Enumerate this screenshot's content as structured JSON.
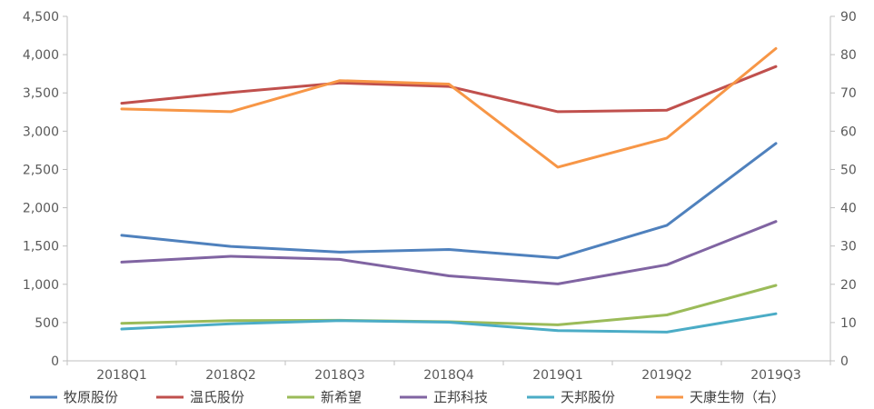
{
  "chart_data": {
    "type": "line",
    "categories": [
      "2018Q1",
      "2018Q2",
      "2018Q3",
      "2018Q4",
      "2019Q1",
      "2019Q2",
      "2019Q3"
    ],
    "yaxis_left": {
      "range": [
        0,
        4500
      ],
      "ticks": [
        0,
        500,
        1000,
        1500,
        2000,
        2500,
        3000,
        3500,
        4000,
        4500
      ],
      "tick_labels": [
        "0",
        "500",
        "1,000",
        "1,500",
        "2,000",
        "2,500",
        "3,000",
        "3,500",
        "4,000",
        "4,500"
      ]
    },
    "yaxis_right": {
      "range": [
        0,
        90
      ],
      "ticks": [
        0,
        10,
        20,
        30,
        40,
        50,
        60,
        70,
        80,
        90
      ],
      "tick_labels": [
        "0",
        "10",
        "20",
        "30",
        "40",
        "50",
        "60",
        "70",
        "80",
        "90"
      ]
    },
    "grid": false,
    "legend_position": "bottom",
    "series": [
      {
        "name": "牧原股份",
        "axis": "left",
        "color": "#4f81bd",
        "values": [
          1640,
          1495,
          1420,
          1455,
          1345,
          1770,
          2840
        ]
      },
      {
        "name": "温氏股份",
        "axis": "left",
        "color": "#c0504d",
        "values": [
          3365,
          3505,
          3630,
          3585,
          3255,
          3275,
          3845
        ]
      },
      {
        "name": "新希望",
        "axis": "left",
        "color": "#9bbb59",
        "values": [
          490,
          525,
          530,
          510,
          470,
          600,
          985
        ]
      },
      {
        "name": "正邦科技",
        "axis": "left",
        "color": "#8064a2",
        "values": [
          1290,
          1365,
          1325,
          1110,
          1005,
          1255,
          1820
        ]
      },
      {
        "name": "天邦股份",
        "axis": "left",
        "color": "#4bacc6",
        "values": [
          415,
          485,
          525,
          505,
          395,
          375,
          615
        ]
      },
      {
        "name": "天康生物（右）",
        "axis": "right",
        "color": "#f79646",
        "values": [
          65.8,
          65.1,
          73.2,
          72.3,
          50.6,
          58.2,
          81.6
        ]
      }
    ]
  }
}
